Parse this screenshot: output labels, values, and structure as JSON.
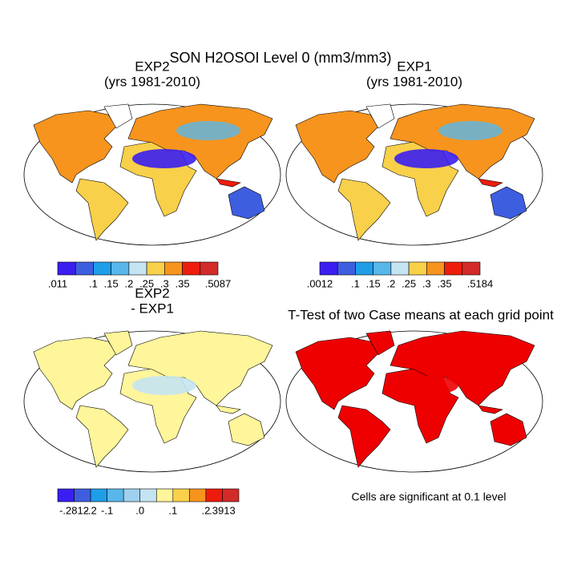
{
  "title": "SON H2OSOI Level 0 (mm3/mm3)",
  "panels": [
    {
      "title": [
        "EXP2",
        "(yrs 1981-2010)"
      ],
      "colorbar": {
        "colors": [
          "#3a1ef0",
          "#3e5ee0",
          "#1f9ee8",
          "#58b6ea",
          "#c4e4f2",
          "#f8d04a",
          "#f7941e",
          "#ee1c0c",
          "#d32a2a"
        ],
        "labels": [
          ".011",
          null,
          ".1",
          ".15",
          ".2",
          ".25",
          ".3",
          ".35",
          null,
          ".5087"
        ]
      }
    },
    {
      "title": [
        "EXP1",
        "(yrs 1981-2010)"
      ],
      "colorbar": {
        "colors": [
          "#3a1ef0",
          "#3e5ee0",
          "#1f9ee8",
          "#58b6ea",
          "#c4e4f2",
          "#f8d04a",
          "#f7941e",
          "#ee1c0c",
          "#d32a2a"
        ],
        "labels": [
          ".0012",
          null,
          ".1",
          ".15",
          ".2",
          ".25",
          ".3",
          ".35",
          null,
          ".5184"
        ]
      }
    },
    {
      "title": [
        "EXP2",
        "- EXP1"
      ],
      "colorbar": {
        "colors": [
          "#3a1ef0",
          "#3e5ee0",
          "#1f9ee8",
          "#58b6ea",
          "#9fd0ee",
          "#c4e4f2",
          "#fff59a",
          "#f8d04a",
          "#f7941e",
          "#ee1c0c",
          "#d32a2a"
        ],
        "labels": [
          null,
          "-.2812",
          "-.2",
          "-.1",
          null,
          ".0",
          null,
          ".1",
          null,
          ".2",
          ".3913",
          null
        ]
      }
    },
    {
      "title": [
        "T-Test of two Case means at each grid point"
      ],
      "note": "Cells are significant at 0.1 level"
    }
  ]
}
